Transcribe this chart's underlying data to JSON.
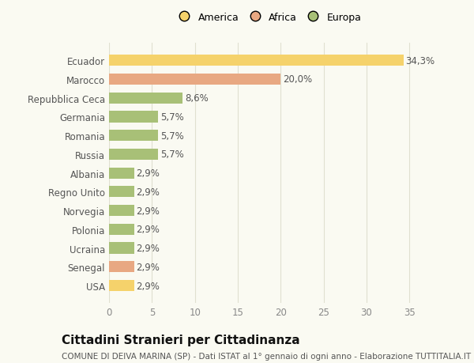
{
  "categories": [
    "USA",
    "Senegal",
    "Ucraina",
    "Polonia",
    "Norvegia",
    "Regno Unito",
    "Albania",
    "Russia",
    "Romania",
    "Germania",
    "Repubblica Ceca",
    "Marocco",
    "Ecuador"
  ],
  "values": [
    2.9,
    2.9,
    2.9,
    2.9,
    2.9,
    2.9,
    2.9,
    5.7,
    5.7,
    5.7,
    8.6,
    20.0,
    34.3
  ],
  "labels": [
    "2,9%",
    "2,9%",
    "2,9%",
    "2,9%",
    "2,9%",
    "2,9%",
    "2,9%",
    "5,7%",
    "5,7%",
    "5,7%",
    "8,6%",
    "20,0%",
    "34,3%"
  ],
  "colors": [
    "#f5d26b",
    "#e8a882",
    "#a8c077",
    "#a8c077",
    "#a8c077",
    "#a8c077",
    "#a8c077",
    "#a8c077",
    "#a8c077",
    "#a8c077",
    "#a8c077",
    "#e8a882",
    "#f5d26b"
  ],
  "legend": [
    {
      "label": "America",
      "color": "#f5d26b"
    },
    {
      "label": "Africa",
      "color": "#e8a882"
    },
    {
      "label": "Europa",
      "color": "#a8c077"
    }
  ],
  "xlim": [
    0,
    37
  ],
  "xticks": [
    0,
    5,
    10,
    15,
    20,
    25,
    30,
    35
  ],
  "title": "Cittadini Stranieri per Cittadinanza",
  "subtitle": "COMUNE DI DEIVA MARINA (SP) - Dati ISTAT al 1° gennaio di ogni anno - Elaborazione TUTTITALIA.IT",
  "background_color": "#fafaf2",
  "bar_height": 0.6,
  "grid_color": "#e0e0d0",
  "label_fontsize": 8.5,
  "tick_fontsize": 8.5,
  "title_fontsize": 11,
  "subtitle_fontsize": 7.5
}
